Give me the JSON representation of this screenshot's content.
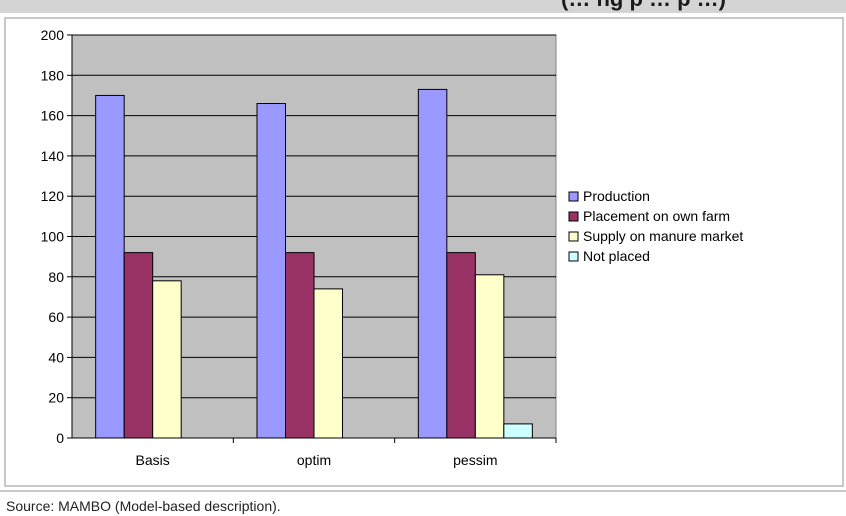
{
  "header": {
    "title_fragment": "(… ng p … p …)"
  },
  "source": {
    "text": "Source: MAMBO (Model-based description)."
  },
  "colors": {
    "plot_bg": "#c0c0c0",
    "gridline": "#000000",
    "production": "#9999ff",
    "placement": "#993366",
    "supply": "#ffffcc",
    "not_placed": "#ccffff"
  },
  "chart_data": {
    "type": "bar",
    "title": "",
    "xlabel": "",
    "ylabel": "",
    "ylim": [
      0,
      200
    ],
    "yticks": [
      0,
      20,
      40,
      60,
      80,
      100,
      120,
      140,
      160,
      180,
      200
    ],
    "grid": true,
    "legend_position": "right",
    "categories": [
      "Basis",
      "optim",
      "pessim"
    ],
    "series": [
      {
        "name": "Production",
        "values": [
          170,
          166,
          173
        ]
      },
      {
        "name": "Placement on own farm",
        "values": [
          92,
          92,
          92
        ]
      },
      {
        "name": "Supply on manure market",
        "values": [
          78,
          74,
          81
        ]
      },
      {
        "name": "Not placed",
        "values": [
          0,
          0,
          7
        ]
      }
    ]
  }
}
